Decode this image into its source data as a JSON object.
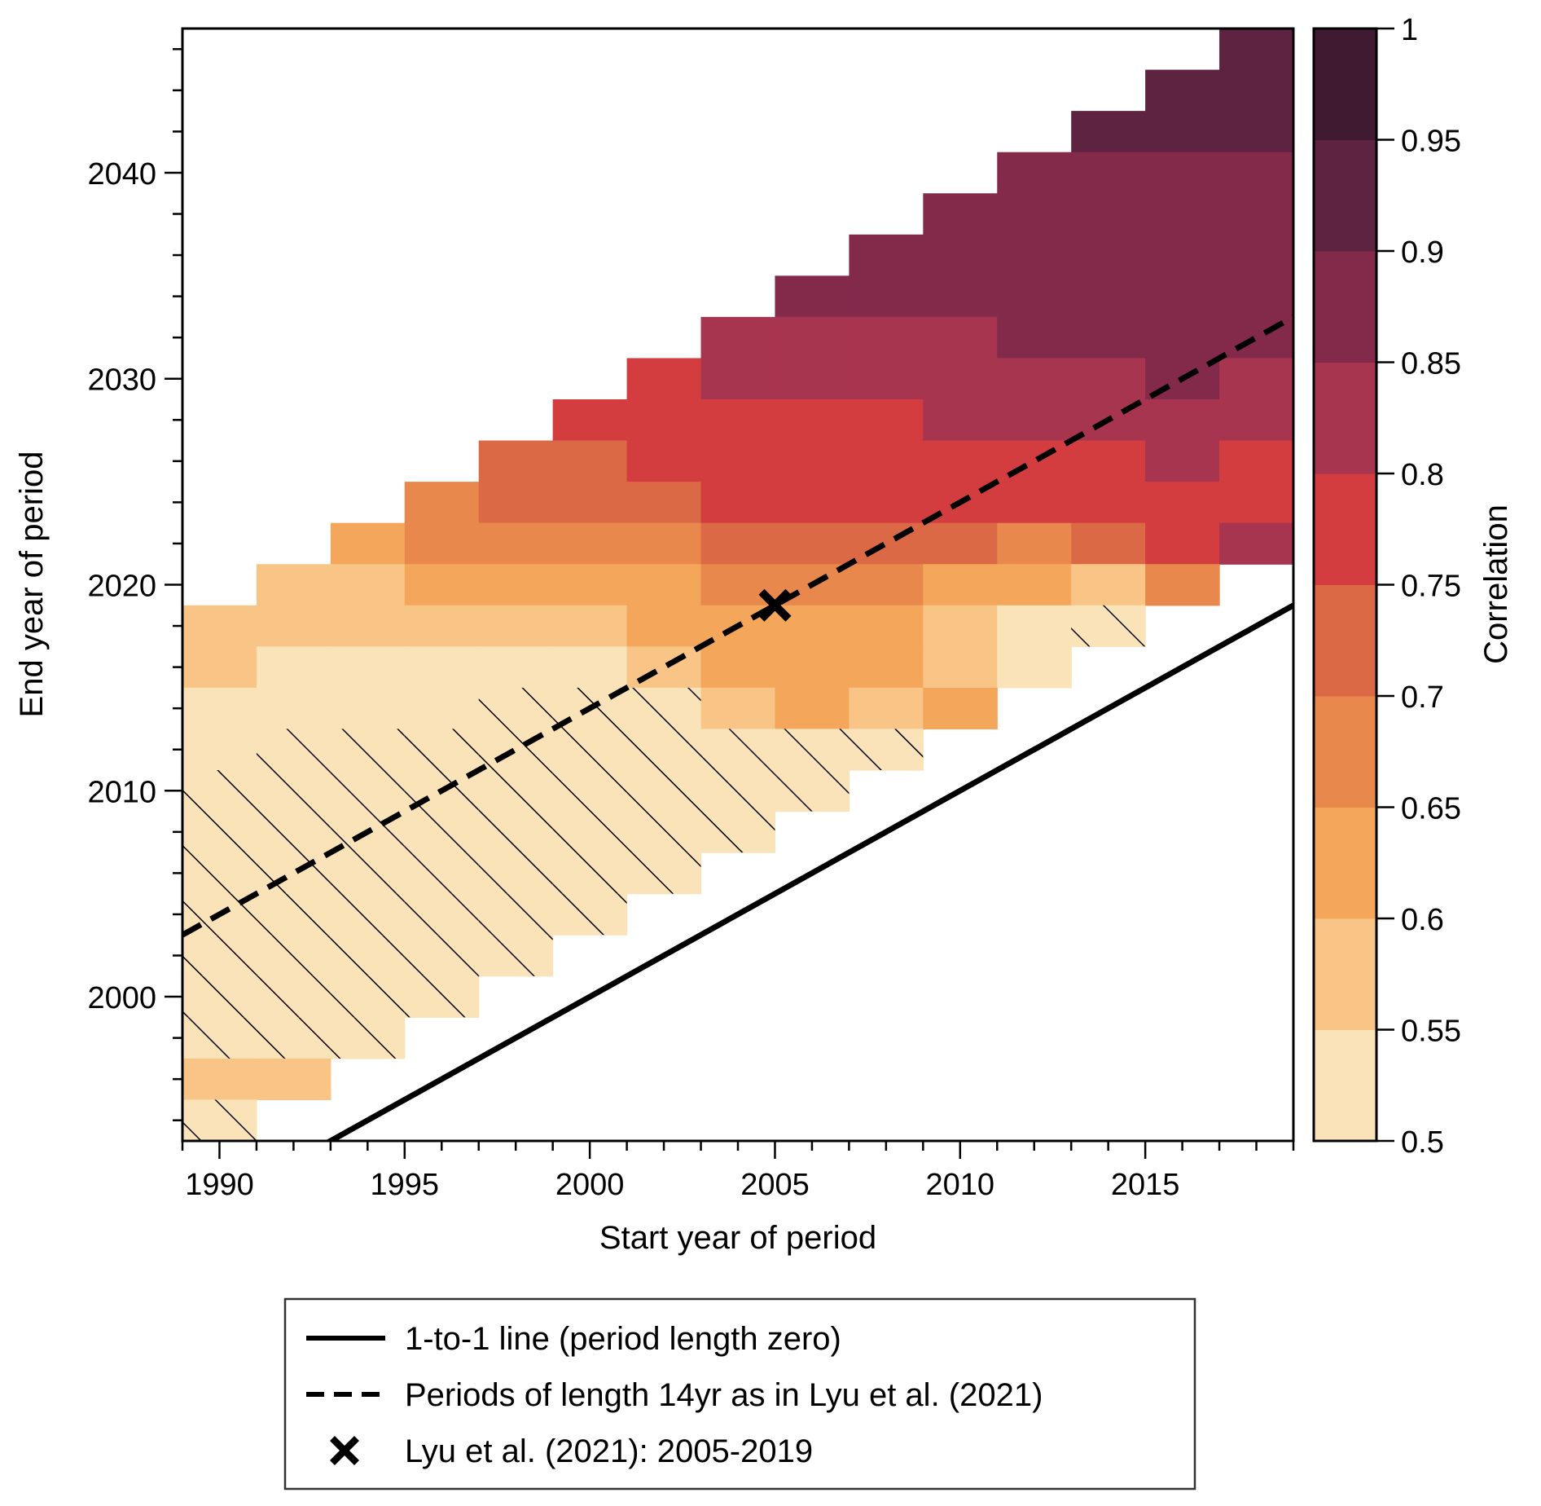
{
  "chart_data": {
    "type": "heatmap",
    "title": "",
    "xlabel": "Start year of period",
    "ylabel": "End year of period",
    "xlim": [
      1989,
      2019
    ],
    "ylim": [
      1993,
      2047
    ],
    "x_major_ticks": [
      1990,
      1995,
      2000,
      2005,
      2010,
      2015
    ],
    "x_tick_labels": [
      "1990",
      "1995",
      "2000",
      "2005",
      "2010",
      "2015"
    ],
    "x_minor_step": 1,
    "y_major_ticks": [
      2000,
      2010,
      2020,
      2030,
      2040
    ],
    "y_tick_labels": [
      "2000",
      "2010",
      "2020",
      "2030",
      "2040"
    ],
    "y_minor_step": 2,
    "cell_size_years": 2,
    "x_centers": [
      1990,
      1992,
      1994,
      1996,
      1998,
      2000,
      2002,
      2004,
      2006,
      2008,
      2010,
      2012,
      2014,
      2016,
      2018
    ],
    "colorbar": {
      "label": "Correlation",
      "range": [
        0.5,
        1.0
      ],
      "ticks": [
        0.5,
        0.55,
        0.6,
        0.65,
        0.7,
        0.75,
        0.8,
        0.85,
        0.9,
        0.95,
        1.0
      ],
      "tick_labels": [
        "0.5",
        "0.55",
        "0.6",
        "0.65",
        "0.7",
        "0.75",
        "0.8",
        "0.85",
        "0.9",
        "0.95",
        "1"
      ],
      "bins": [
        {
          "range": [
            0.5,
            0.55
          ],
          "color": "#fbe3b9"
        },
        {
          "range": [
            0.55,
            0.6
          ],
          "color": "#f9c587"
        },
        {
          "range": [
            0.6,
            0.65
          ],
          "color": "#f4a65b"
        },
        {
          "range": [
            0.65,
            0.7
          ],
          "color": "#e8884d"
        },
        {
          "range": [
            0.7,
            0.75
          ],
          "color": "#dc6946"
        },
        {
          "range": [
            0.75,
            0.8
          ],
          "color": "#d33d3f"
        },
        {
          "range": [
            0.8,
            0.85
          ],
          "color": "#a8354f"
        },
        {
          "range": [
            0.85,
            0.9
          ],
          "color": "#832a4b"
        },
        {
          "range": [
            0.9,
            0.95
          ],
          "color": "#5e2340"
        },
        {
          "range": [
            0.95,
            1.0
          ],
          "color": "#3f1a31"
        }
      ]
    },
    "cell_encoding": "bin index per column (0 = no data, 1..10 = colorbar bin); hatch 1 = hatched (not significant)",
    "rows": [
      {
        "end_year": 2046,
        "bins": [
          0,
          0,
          0,
          0,
          0,
          0,
          0,
          0,
          0,
          0,
          0,
          0,
          0,
          0,
          9
        ],
        "hatch": [
          0,
          0,
          0,
          0,
          0,
          0,
          0,
          0,
          0,
          0,
          0,
          0,
          0,
          0,
          0
        ]
      },
      {
        "end_year": 2044,
        "bins": [
          0,
          0,
          0,
          0,
          0,
          0,
          0,
          0,
          0,
          0,
          0,
          0,
          0,
          9,
          9
        ],
        "hatch": [
          0,
          0,
          0,
          0,
          0,
          0,
          0,
          0,
          0,
          0,
          0,
          0,
          0,
          0,
          0
        ]
      },
      {
        "end_year": 2042,
        "bins": [
          0,
          0,
          0,
          0,
          0,
          0,
          0,
          0,
          0,
          0,
          0,
          0,
          9,
          9,
          9
        ],
        "hatch": [
          0,
          0,
          0,
          0,
          0,
          0,
          0,
          0,
          0,
          0,
          0,
          0,
          0,
          0,
          0
        ]
      },
      {
        "end_year": 2040,
        "bins": [
          0,
          0,
          0,
          0,
          0,
          0,
          0,
          0,
          0,
          0,
          0,
          8,
          8,
          8,
          8
        ],
        "hatch": [
          0,
          0,
          0,
          0,
          0,
          0,
          0,
          0,
          0,
          0,
          0,
          0,
          0,
          0,
          0
        ]
      },
      {
        "end_year": 2038,
        "bins": [
          0,
          0,
          0,
          0,
          0,
          0,
          0,
          0,
          0,
          0,
          8,
          8,
          8,
          8,
          8
        ],
        "hatch": [
          0,
          0,
          0,
          0,
          0,
          0,
          0,
          0,
          0,
          0,
          0,
          0,
          0,
          0,
          0
        ]
      },
      {
        "end_year": 2036,
        "bins": [
          0,
          0,
          0,
          0,
          0,
          0,
          0,
          0,
          0,
          8,
          8,
          8,
          8,
          8,
          8
        ],
        "hatch": [
          0,
          0,
          0,
          0,
          0,
          0,
          0,
          0,
          0,
          0,
          0,
          0,
          0,
          0,
          0
        ]
      },
      {
        "end_year": 2034,
        "bins": [
          0,
          0,
          0,
          0,
          0,
          0,
          0,
          0,
          8,
          8,
          8,
          8,
          8,
          8,
          8
        ],
        "hatch": [
          0,
          0,
          0,
          0,
          0,
          0,
          0,
          0,
          0,
          0,
          0,
          0,
          0,
          0,
          0
        ]
      },
      {
        "end_year": 2032,
        "bins": [
          0,
          0,
          0,
          0,
          0,
          0,
          0,
          7,
          7,
          7,
          7,
          8,
          8,
          8,
          8
        ],
        "hatch": [
          0,
          0,
          0,
          0,
          0,
          0,
          0,
          0,
          0,
          0,
          0,
          0,
          0,
          0,
          0
        ]
      },
      {
        "end_year": 2030,
        "bins": [
          0,
          0,
          0,
          0,
          0,
          0,
          6,
          7,
          7,
          7,
          7,
          7,
          7,
          8,
          7
        ],
        "hatch": [
          0,
          0,
          0,
          0,
          0,
          0,
          0,
          0,
          0,
          0,
          0,
          0,
          0,
          0,
          0
        ]
      },
      {
        "end_year": 2028,
        "bins": [
          0,
          0,
          0,
          0,
          0,
          6,
          6,
          6,
          6,
          6,
          7,
          7,
          7,
          7,
          7
        ],
        "hatch": [
          0,
          0,
          0,
          0,
          0,
          0,
          0,
          0,
          0,
          0,
          0,
          0,
          0,
          0,
          0
        ]
      },
      {
        "end_year": 2026,
        "bins": [
          0,
          0,
          0,
          0,
          5,
          5,
          6,
          6,
          6,
          6,
          6,
          6,
          6,
          7,
          6
        ],
        "hatch": [
          0,
          0,
          0,
          0,
          0,
          0,
          0,
          0,
          0,
          0,
          0,
          0,
          0,
          0,
          0
        ]
      },
      {
        "end_year": 2024,
        "bins": [
          0,
          0,
          0,
          4,
          5,
          5,
          5,
          6,
          6,
          6,
          6,
          6,
          6,
          6,
          6
        ],
        "hatch": [
          0,
          0,
          0,
          0,
          0,
          0,
          0,
          0,
          0,
          0,
          0,
          0,
          0,
          0,
          0
        ]
      },
      {
        "end_year": 2022,
        "bins": [
          0,
          0,
          3,
          4,
          4,
          4,
          4,
          5,
          5,
          5,
          5,
          4,
          5,
          6,
          7
        ],
        "hatch": [
          0,
          0,
          0,
          0,
          0,
          0,
          0,
          0,
          0,
          0,
          0,
          0,
          0,
          0,
          0
        ]
      },
      {
        "end_year": 2020,
        "bins": [
          0,
          2,
          2,
          3,
          3,
          3,
          3,
          4,
          4,
          4,
          3,
          3,
          2,
          4,
          0
        ],
        "hatch": [
          0,
          0,
          0,
          0,
          0,
          0,
          0,
          0,
          0,
          0,
          0,
          0,
          0,
          0,
          0
        ]
      },
      {
        "end_year": 2018,
        "bins": [
          2,
          2,
          2,
          2,
          2,
          2,
          3,
          3,
          3,
          3,
          2,
          1,
          1,
          0,
          0
        ],
        "hatch": [
          0,
          0,
          0,
          0,
          0,
          0,
          0,
          0,
          0,
          0,
          0,
          0,
          1,
          0,
          0
        ]
      },
      {
        "end_year": 2016,
        "bins": [
          2,
          1,
          1,
          1,
          1,
          1,
          2,
          3,
          3,
          3,
          2,
          1,
          0,
          0,
          0
        ],
        "hatch": [
          0,
          0,
          0,
          0,
          0,
          0,
          0,
          0,
          0,
          0,
          0,
          0,
          0,
          0,
          0
        ]
      },
      {
        "end_year": 2014,
        "bins": [
          1,
          1,
          1,
          1,
          1,
          1,
          1,
          2,
          3,
          2,
          3,
          0,
          0,
          0,
          0
        ],
        "hatch": [
          0,
          0,
          0,
          0,
          1,
          1,
          1,
          0,
          0,
          0,
          0,
          0,
          0,
          0,
          0
        ]
      },
      {
        "end_year": 2012,
        "bins": [
          1,
          1,
          1,
          1,
          1,
          1,
          1,
          1,
          1,
          1,
          0,
          0,
          0,
          0,
          0
        ],
        "hatch": [
          0,
          1,
          1,
          1,
          1,
          1,
          1,
          1,
          1,
          1,
          0,
          0,
          0,
          0,
          0
        ]
      },
      {
        "end_year": 2010,
        "bins": [
          1,
          1,
          1,
          1,
          1,
          1,
          1,
          1,
          1,
          0,
          0,
          0,
          0,
          0,
          0
        ],
        "hatch": [
          1,
          1,
          1,
          1,
          1,
          1,
          1,
          1,
          1,
          0,
          0,
          0,
          0,
          0,
          0
        ]
      },
      {
        "end_year": 2008,
        "bins": [
          1,
          1,
          1,
          1,
          1,
          1,
          1,
          1,
          0,
          0,
          0,
          0,
          0,
          0,
          0
        ],
        "hatch": [
          1,
          1,
          1,
          1,
          1,
          1,
          1,
          1,
          0,
          0,
          0,
          0,
          0,
          0,
          0
        ]
      },
      {
        "end_year": 2006,
        "bins": [
          1,
          1,
          1,
          1,
          1,
          1,
          1,
          0,
          0,
          0,
          0,
          0,
          0,
          0,
          0
        ],
        "hatch": [
          1,
          1,
          1,
          1,
          1,
          1,
          1,
          0,
          0,
          0,
          0,
          0,
          0,
          0,
          0
        ]
      },
      {
        "end_year": 2004,
        "bins": [
          1,
          1,
          1,
          1,
          1,
          1,
          0,
          0,
          0,
          0,
          0,
          0,
          0,
          0,
          0
        ],
        "hatch": [
          1,
          1,
          1,
          1,
          1,
          1,
          0,
          0,
          0,
          0,
          0,
          0,
          0,
          0,
          0
        ]
      },
      {
        "end_year": 2002,
        "bins": [
          1,
          1,
          1,
          1,
          1,
          0,
          0,
          0,
          0,
          0,
          0,
          0,
          0,
          0,
          0
        ],
        "hatch": [
          1,
          1,
          1,
          1,
          1,
          0,
          0,
          0,
          0,
          0,
          0,
          0,
          0,
          0,
          0
        ]
      },
      {
        "end_year": 2000,
        "bins": [
          1,
          1,
          1,
          1,
          0,
          0,
          0,
          0,
          0,
          0,
          0,
          0,
          0,
          0,
          0
        ],
        "hatch": [
          1,
          1,
          1,
          1,
          0,
          0,
          0,
          0,
          0,
          0,
          0,
          0,
          0,
          0,
          0
        ]
      },
      {
        "end_year": 1998,
        "bins": [
          1,
          1,
          1,
          0,
          0,
          0,
          0,
          0,
          0,
          0,
          0,
          0,
          0,
          0,
          0
        ],
        "hatch": [
          1,
          1,
          1,
          0,
          0,
          0,
          0,
          0,
          0,
          0,
          0,
          0,
          0,
          0,
          0
        ]
      },
      {
        "end_year": 1996,
        "bins": [
          2,
          2,
          0,
          0,
          0,
          0,
          0,
          0,
          0,
          0,
          0,
          0,
          0,
          0,
          0
        ],
        "hatch": [
          0,
          0,
          0,
          0,
          0,
          0,
          0,
          0,
          0,
          0,
          0,
          0,
          0,
          0,
          0
        ]
      },
      {
        "end_year": 1994,
        "bins": [
          1,
          0,
          0,
          0,
          0,
          0,
          0,
          0,
          0,
          0,
          0,
          0,
          0,
          0,
          0
        ],
        "hatch": [
          1,
          0,
          0,
          0,
          0,
          0,
          0,
          0,
          0,
          0,
          0,
          0,
          0,
          0,
          0
        ]
      }
    ],
    "lines": [
      {
        "name": "1-to-1 line (period length zero)",
        "style": "solid",
        "color": "#000000",
        "x": [
          1989,
          2019
        ],
        "y": [
          1989,
          2019
        ]
      },
      {
        "name": "Periods of length 14yr as in Lyu et al. (2021)",
        "style": "dashed",
        "color": "#000000",
        "x": [
          1989,
          2019
        ],
        "y": [
          2003,
          2033
        ]
      }
    ],
    "markers": [
      {
        "name": "Lyu et al. (2021): 2005-2019",
        "symbol": "X",
        "color": "#000000",
        "x": 2005,
        "y": 2019
      }
    ],
    "legend": {
      "position": "bottom-center (below plot)",
      "entries": [
        {
          "label": "1-to-1 line (period length zero)",
          "symbol": "solid-line"
        },
        {
          "label": "Periods of length 14yr as in Lyu et al. (2021)",
          "symbol": "dashed-line"
        },
        {
          "label": "Lyu et al. (2021): 2005-2019",
          "symbol": "x-marker"
        }
      ]
    },
    "grid": false
  }
}
